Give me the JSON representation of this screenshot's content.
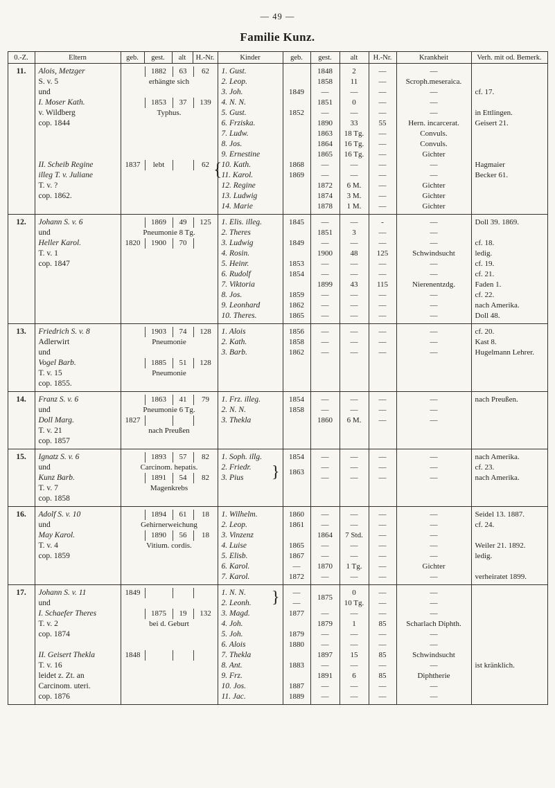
{
  "page": {
    "number": "— 49 —",
    "title": "Familie Kunz."
  },
  "header": {
    "oz": "0.-Z.",
    "eltern": "Eltern",
    "geb": "geb.",
    "gest": "gest.",
    "alt": "alt",
    "hnr": "H.-Nr.",
    "kinder": "Kinder",
    "kgeb": "geb.",
    "kgest": "gest.",
    "kalt": "alt",
    "khnr": "H.-Nr.",
    "krankheit": "Krankheit",
    "verh": "Verh. mit od. Bemerk."
  },
  "families": [
    {
      "nr": "11.",
      "parents": [
        {
          "n": "Alois, Metzger",
          "ni": true,
          "v": [
            "",
            "1882",
            "63",
            "62"
          ]
        },
        {
          "n": "S. v. 5",
          "note": "erhängte sich"
        },
        {
          "n": "und"
        },
        {
          "n": "I. Moser Kath.",
          "ni": true,
          "v": [
            "",
            "1853",
            "37",
            "139"
          ]
        },
        {
          "n": "v. Wildberg",
          "note": "Typhus."
        },
        {
          "n": "cop. 1844"
        },
        {},
        {},
        {},
        {
          "n": "II. Scheib Regine",
          "ni": true,
          "v": [
            "1837",
            "lebt",
            "",
            "62"
          ],
          "brace": true
        },
        {
          "n": "illeg T. v. Juliane",
          "ni": true
        },
        {
          "n": "T. v. ?"
        },
        {
          "n": "cop. 1862."
        }
      ],
      "children": [
        {
          "k": "1. Gust.",
          "d": "1848",
          "a": "2",
          "h": "—",
          "kr": "—"
        },
        {
          "k": "2. Leop.",
          "d": "1858",
          "a": "11",
          "h": "—",
          "kr": "Scroph.meseraica."
        },
        {
          "k": "3. Joh.",
          "g": "1849",
          "d": "—",
          "a": "—",
          "h": "—",
          "kr": "—",
          "bm": "cf. 17."
        },
        {
          "k": "4. N. N.",
          "d": "1851",
          "a": "0",
          "h": "—",
          "kr": "—"
        },
        {
          "k": "5. Gust.",
          "g": "1852",
          "d": "—",
          "a": "—",
          "h": "—",
          "kr": "—",
          "bm": "in Ettlingen."
        },
        {
          "k": "6. Frziska.",
          "d": "1890",
          "a": "33",
          "h": "55",
          "kr": "Hern. incarcerat.",
          "bm": "Geisert 21."
        },
        {
          "k": "7. Ludw.",
          "d": "1863",
          "a": "18 Tg.",
          "h": "—",
          "kr": "Convuls."
        },
        {
          "k": "8. Jos.",
          "d": "1864",
          "a": "16 Tg.",
          "h": "—",
          "kr": "Convuls."
        },
        {
          "k": "9. Ernestine",
          "d": "1865",
          "a": "16 Tg.",
          "h": "—",
          "kr": "Gichter"
        },
        {
          "k": "10. Kath.",
          "g": "1868",
          "d": "—",
          "a": "—",
          "h": "—",
          "kr": "—",
          "bm": "Hagmaier"
        },
        {
          "k": "11. Karol.",
          "g": "1869",
          "d": "—",
          "a": "—",
          "h": "—",
          "kr": "—",
          "bm": "Becker 61."
        },
        {
          "k": "12. Regine",
          "d": "1872",
          "a": "6 M.",
          "h": "—",
          "kr": "Gichter"
        },
        {
          "k": "13. Ludwig",
          "d": "1874",
          "a": "3 M.",
          "h": "—",
          "kr": "Gichter"
        },
        {
          "k": "14. Marie",
          "d": "1878",
          "a": "1 M.",
          "h": "—",
          "kr": "Gichter"
        }
      ]
    },
    {
      "nr": "12.",
      "parents": [
        {
          "n": "Johann S. v. 6",
          "ni": true,
          "v": [
            "",
            "1869",
            "49",
            "125"
          ]
        },
        {
          "n": "und",
          "note": "Pneumonie 8 Tg."
        },
        {
          "n": "Heller Karol.",
          "ni": true,
          "v": [
            "1820",
            "1900",
            "70",
            ""
          ]
        },
        {
          "n": "T. v. 1"
        },
        {
          "n": "cop. 1847"
        }
      ],
      "children": [
        {
          "k": "1. Elis. illeg.",
          "g": "1845",
          "d": "—",
          "a": "—",
          "h": "-",
          "kr": "—",
          "bm": "Doll 39. 1869."
        },
        {
          "k": "2. Theres",
          "d": "1851",
          "a": "3",
          "h": "—",
          "kr": "—"
        },
        {
          "k": "3. Ludwig",
          "g": "1849",
          "d": "—",
          "a": "—",
          "h": "—",
          "kr": "—",
          "bm": "cf. 18."
        },
        {
          "k": "4. Rosin.",
          "d": "1900",
          "a": "48",
          "h": "125",
          "kr": "Schwindsucht",
          "bm": "ledig."
        },
        {
          "k": "5. Heinr.",
          "g": "1853",
          "d": "—",
          "a": "—",
          "h": "—",
          "kr": "—",
          "bm": "cf. 19."
        },
        {
          "k": "6. Rudolf",
          "g": "1854",
          "d": "—",
          "a": "—",
          "h": "—",
          "kr": "—",
          "bm": "cf. 21."
        },
        {
          "k": "7. Viktoria",
          "d": "1899",
          "a": "43",
          "h": "115",
          "kr": "Nierenentzdg.",
          "bm": "Faden 1."
        },
        {
          "k": "8. Jos.",
          "g": "1859",
          "d": "—",
          "a": "—",
          "h": "—",
          "kr": "—",
          "bm": "cf. 22."
        },
        {
          "k": "9. Leonhard",
          "g": "1862",
          "d": "—",
          "a": "—",
          "h": "—",
          "kr": "—",
          "bm": "nach Amerika."
        },
        {
          "k": "10. Theres.",
          "g": "1865",
          "d": "—",
          "a": "—",
          "h": "—",
          "kr": "—",
          "bm": "Doll 48."
        }
      ]
    },
    {
      "nr": "13.",
      "parents": [
        {
          "n": "Friedrich S. v. 8",
          "ni": true,
          "v": [
            "",
            "1903",
            "74",
            "128"
          ]
        },
        {
          "n": "Adlerwirt",
          "note": "Pneumonie"
        },
        {
          "n": "und"
        },
        {
          "n": "Vogel Barb.",
          "ni": true,
          "v": [
            "",
            "1885",
            "51",
            "128"
          ]
        },
        {
          "n": "T. v. 15",
          "note": "Pneumonie"
        },
        {
          "n": "cop. 1855."
        }
      ],
      "children": [
        {
          "k": "1. Alois",
          "g": "1856",
          "d": "—",
          "a": "—",
          "h": "—",
          "kr": "—",
          "bm": "cf. 20."
        },
        {
          "k": "2. Kath.",
          "g": "1858",
          "d": "—",
          "a": "—",
          "h": "—",
          "kr": "—",
          "bm": "Kast 8."
        },
        {
          "k": "3. Barb.",
          "g": "1862",
          "d": "—",
          "a": "—",
          "h": "—",
          "kr": "—",
          "bm": "Hugelmann Lehrer."
        }
      ]
    },
    {
      "nr": "14.",
      "parents": [
        {
          "n": "Franz S. v. 6",
          "ni": true,
          "v": [
            "",
            "1863",
            "41",
            "79"
          ]
        },
        {
          "n": "und",
          "note": "Pneumonie 6 Tg."
        },
        {
          "n": "Doll Marg.",
          "ni": true,
          "v": [
            "1827",
            "",
            "",
            ""
          ]
        },
        {
          "n": "T. v. 21",
          "note": "nach Preußen"
        },
        {
          "n": "cop. 1857"
        }
      ],
      "children": [
        {
          "k": "1. Frz. illeg.",
          "g": "1854",
          "d": "—",
          "a": "—",
          "h": "—",
          "kr": "—",
          "bm": "nach Preußen."
        },
        {
          "k": "2. N. N.",
          "g": "1858",
          "d": "—",
          "a": "—",
          "h": "—",
          "kr": "—"
        },
        {
          "k": "3. Thekla",
          "d": "1860",
          "a": "6 M.",
          "h": "—",
          "kr": "—"
        }
      ]
    },
    {
      "nr": "15.",
      "parents": [
        {
          "n": "Ignatz S. v. 6",
          "ni": true,
          "v": [
            "",
            "1893",
            "57",
            "82"
          ]
        },
        {
          "n": "und",
          "note": "Carcinom. hepatis."
        },
        {
          "n": "Kunz Barb.",
          "ni": true,
          "v": [
            "",
            "1891",
            "54",
            "82"
          ]
        },
        {
          "n": "T. v. 7",
          "note": "Magenkrebs"
        },
        {
          "n": "cop. 1858"
        }
      ],
      "children": [
        {
          "k": "1. Soph. illg.",
          "g": "1854",
          "d": "—",
          "a": "—",
          "h": "—",
          "kr": "—",
          "bm": "nach Amerika."
        },
        {
          "k": "2. Friedr.",
          "br": true,
          "g": "1863",
          "gS": true,
          "d": "—",
          "a": "—",
          "h": "—",
          "kr": "—",
          "bm": "cf. 23."
        },
        {
          "k": "3. Pius",
          "d": "—",
          "a": "—",
          "h": "—",
          "kr": "—",
          "bm": "nach Amerika."
        }
      ]
    },
    {
      "nr": "16.",
      "parents": [
        {
          "n": "Adolf S. v. 10",
          "ni": true,
          "v": [
            "",
            "1894",
            "61",
            "18"
          ]
        },
        {
          "n": "und",
          "note": "Gehirnerweichung"
        },
        {
          "n": "May Karol.",
          "ni": true,
          "v": [
            "",
            "1890",
            "56",
            "18"
          ]
        },
        {
          "n": "T. v. 4",
          "note": "Vitium. cordis."
        },
        {
          "n": "cop. 1859"
        }
      ],
      "children": [
        {
          "k": "1. Wilhelm.",
          "g": "1860",
          "d": "—",
          "a": "—",
          "h": "—",
          "kr": "—",
          "bm": "Seidel 13. 1887."
        },
        {
          "k": "2. Leop.",
          "g": "1861",
          "d": "—",
          "a": "—",
          "h": "—",
          "kr": "—",
          "bm": "cf. 24."
        },
        {
          "k": "3. Vinzenz",
          "d": "1864",
          "a": "7 Std.",
          "h": "—",
          "kr": "—"
        },
        {
          "k": "4. Luise",
          "g": "1865",
          "d": "—",
          "a": "—",
          "h": "—",
          "kr": "—",
          "bm": "Weiler 21. 1892."
        },
        {
          "k": "5. Elisb.",
          "g": "1867",
          "d": "—",
          "a": "—",
          "h": "—",
          "kr": "—",
          "bm": "ledig."
        },
        {
          "k": "6. Karol.",
          "g": "—",
          "d": "1870",
          "a": "1 Tg.",
          "h": "—",
          "kr": "Gichter"
        },
        {
          "k": "7. Karol.",
          "g": "1872",
          "d": "—",
          "a": "—",
          "h": "—",
          "kr": "—",
          "bm": "verheiratet 1899."
        }
      ]
    },
    {
      "nr": "17.",
      "parents": [
        {
          "n": "Johann S. v. 11",
          "ni": true,
          "v": [
            "1849",
            "",
            "",
            ""
          ]
        },
        {
          "n": "und"
        },
        {
          "n": "I. Schaefer Theres",
          "ni": true,
          "v": [
            "",
            "1875",
            "19",
            "132"
          ]
        },
        {
          "n": "T. v. 2",
          "note": "bei d. Geburt"
        },
        {
          "n": "cop. 1874"
        },
        {},
        {
          "n": "II. Geisert Thekla",
          "ni": true,
          "v": [
            "1848",
            "",
            "",
            ""
          ]
        },
        {
          "n": "T. v. 16"
        },
        {
          "n": "leidet z. Zt. an"
        },
        {
          "n": "Carcinom. uteri."
        },
        {
          "n": "cop. 1876"
        }
      ],
      "children": [
        {
          "k": "1. N. N.",
          "br": true,
          "g": "—",
          "d": "1875",
          "dS": true,
          "a": "0",
          "h": "—",
          "kr": "—"
        },
        {
          "k": "2. Leonh.",
          "g": "—",
          "a": "10 Tg.",
          "h": "—",
          "kr": "—"
        },
        {
          "k": "3. Magd.",
          "g": "1877",
          "d": "—",
          "a": "—",
          "h": "—",
          "kr": "—"
        },
        {
          "k": "4. Joh.",
          "d": "1879",
          "a": "1",
          "h": "85",
          "kr": "Scharlach Diphth."
        },
        {
          "k": "5. Joh.",
          "g": "1879",
          "d": "—",
          "a": "—",
          "h": "—",
          "kr": "—"
        },
        {
          "k": "6. Alois",
          "g": "1880",
          "d": "—",
          "a": "—",
          "h": "—",
          "kr": "—"
        },
        {
          "k": "7. Thekla",
          "d": "1897",
          "a": "15",
          "h": "85",
          "kr": "Schwindsucht"
        },
        {
          "k": "8. Ant.",
          "g": "1883",
          "d": "—",
          "a": "—",
          "h": "—",
          "kr": "—",
          "bm": "ist kränklich."
        },
        {
          "k": "9. Frz.",
          "d": "1891",
          "a": "6",
          "h": "85",
          "kr": "Diphtherie"
        },
        {
          "k": "10. Jos.",
          "g": "1887",
          "d": "—",
          "a": "—",
          "h": "—",
          "kr": "—"
        },
        {
          "k": "11. Jac.",
          "g": "1889",
          "d": "—",
          "a": "—",
          "h": "—",
          "kr": "—"
        }
      ]
    }
  ]
}
